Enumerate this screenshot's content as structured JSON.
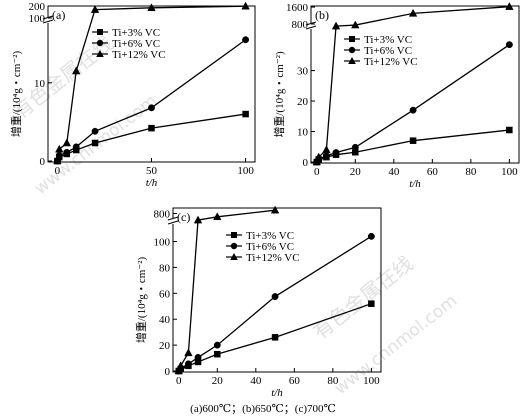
{
  "watermarks": [
    "有色金属在线",
    "www.cnnmol.com"
  ],
  "caption": "(a)600℃；(b)650℃；(c)700℃",
  "legend": [
    "Ti+3% VC",
    "Ti+6% VC",
    "Ti+12% VC"
  ],
  "chart_data": [
    {
      "type": "line",
      "panel": "(a)",
      "xlabel": "t/h",
      "ylabel": "增重/(10⁴g・cm⁻²)",
      "x_ticks": [
        0,
        50,
        100
      ],
      "y_ticks_low": [
        0,
        10
      ],
      "y_ticks_high": [
        100,
        200
      ],
      "xlim": [
        -5,
        105
      ],
      "y_break": true,
      "series": [
        {
          "name": "Ti+3% VC",
          "marker": "square",
          "x": [
            0,
            1,
            5,
            10,
            20,
            50,
            100
          ],
          "y": [
            0,
            0.5,
            0.9,
            1.4,
            2.3,
            4.2,
            6.0
          ]
        },
        {
          "name": "Ti+6% VC",
          "marker": "circle",
          "x": [
            0,
            1,
            5,
            10,
            20,
            50,
            100
          ],
          "y": [
            0,
            0.7,
            1.1,
            1.8,
            3.8,
            6.8,
            15.5
          ]
        },
        {
          "name": "Ti+12% VC",
          "marker": "triangle",
          "x": [
            0,
            1,
            5,
            10,
            20,
            50,
            100
          ],
          "y": [
            0,
            1.5,
            2.3,
            11.5,
            170,
            185,
            198
          ]
        }
      ]
    },
    {
      "type": "line",
      "panel": "(b)",
      "xlabel": "t/h",
      "ylabel": "增重/(10⁴g・cm⁻²)",
      "x_ticks": [
        0,
        20,
        40,
        60,
        80,
        100
      ],
      "y_ticks_low": [
        0,
        10,
        20,
        30
      ],
      "y_ticks_high": [
        800,
        1600
      ],
      "xlim": [
        -3,
        105
      ],
      "y_break": true,
      "series": [
        {
          "name": "Ti+3% VC",
          "marker": "square",
          "x": [
            0,
            1,
            5,
            10,
            20,
            50,
            100
          ],
          "y": [
            0,
            0.8,
            1.6,
            2.4,
            3.2,
            7.0,
            10.5
          ]
        },
        {
          "name": "Ti+6% VC",
          "marker": "circle",
          "x": [
            0,
            1,
            5,
            10,
            20,
            50,
            100
          ],
          "y": [
            0,
            1.0,
            2.0,
            3.1,
            4.8,
            17.0,
            38.5
          ]
        },
        {
          "name": "Ti+12% VC",
          "marker": "triangle",
          "x": [
            0,
            1,
            5,
            10,
            20,
            50,
            100
          ],
          "y": [
            0,
            1.6,
            4.0,
            700,
            750,
            1300,
            1620
          ]
        }
      ]
    },
    {
      "type": "line",
      "panel": "(c)",
      "xlabel": "t/h",
      "ylabel": "增重/(10⁴g・cm⁻²)",
      "x_ticks": [
        0,
        20,
        40,
        60,
        80,
        100
      ],
      "y_ticks_low": [
        0,
        20,
        40,
        60,
        80,
        100
      ],
      "y_ticks_high": [
        800
      ],
      "xlim": [
        -3,
        105
      ],
      "y_break": true,
      "series": [
        {
          "name": "Ti+3% VC",
          "marker": "square",
          "x": [
            0,
            1,
            5,
            10,
            20,
            50,
            100
          ],
          "y": [
            0,
            1.5,
            4.0,
            7.0,
            13.0,
            26.0,
            52.0
          ]
        },
        {
          "name": "Ti+6% VC",
          "marker": "circle",
          "x": [
            0,
            1,
            5,
            10,
            20,
            50,
            100
          ],
          "y": [
            0,
            2.0,
            5.5,
            10.5,
            20.0,
            57.5,
            104
          ]
        },
        {
          "name": "Ti+12% VC",
          "marker": "triangle",
          "x": [
            0,
            1,
            5,
            10,
            20,
            50
          ],
          "y": [
            0,
            4.0,
            14.0,
            740,
            770,
            830
          ]
        }
      ]
    }
  ]
}
